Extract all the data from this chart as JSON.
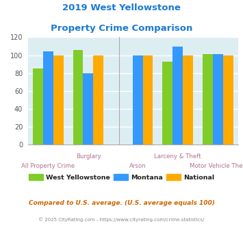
{
  "title_line1": "2019 West Yellowstone",
  "title_line2": "Property Crime Comparison",
  "title_color": "#1a7ad4",
  "values": {
    "West Yellowstone": [
      85,
      106,
      null,
      93,
      101
    ],
    "Montana": [
      104,
      80,
      100,
      110,
      101
    ],
    "National": [
      100,
      100,
      100,
      100,
      100
    ]
  },
  "bar_colors": {
    "West Yellowstone": "#80cc28",
    "Montana": "#3399ff",
    "National": "#ffaa00"
  },
  "legend_labels": [
    "West Yellowstone",
    "Montana",
    "National"
  ],
  "group_positions": [
    0.0,
    1.1,
    2.45,
    3.55,
    4.65
  ],
  "top_labels": {
    "1.1": "Burglary",
    "3.55": "Larceny & Theft"
  },
  "bottom_labels": {
    "0.0": "All Property Crime",
    "2.45": "Arson",
    "4.65": "Motor Vehicle Theft"
  },
  "x_label_color": "#b07090",
  "ylim": [
    0,
    120
  ],
  "yticks": [
    0,
    20,
    40,
    60,
    80,
    100,
    120
  ],
  "plot_bg_color": "#ddeef2",
  "grid_color": "#ffffff",
  "footer_text": "Compared to U.S. average. (U.S. average equals 100)",
  "footer_color": "#cc6600",
  "copyright_text": "© 2025 CityRating.com - https://www.cityrating.com/crime-statistics/",
  "copyright_color": "#888888",
  "bar_width": 0.28
}
